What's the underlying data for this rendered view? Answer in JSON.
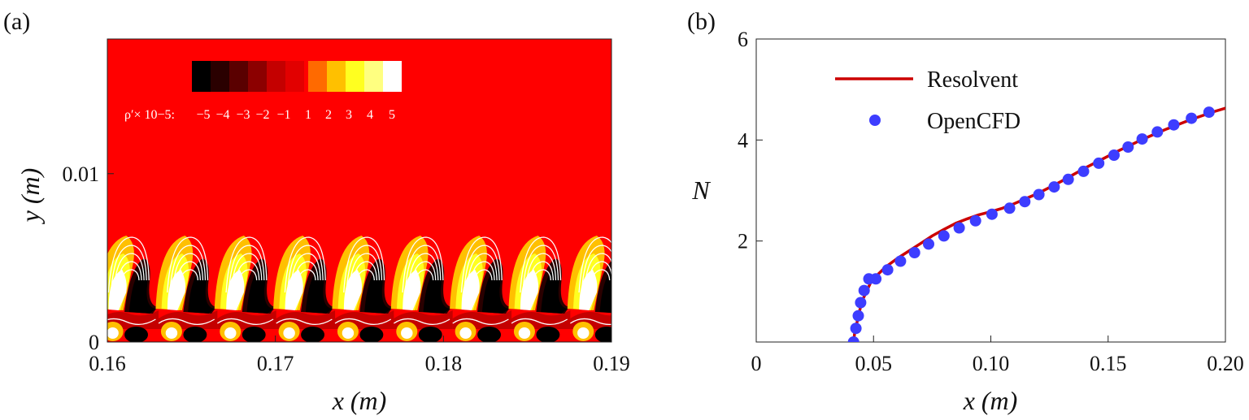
{
  "panel_a": {
    "label": "(a)",
    "xlabel": "x (m)",
    "ylabel": "y (m)",
    "xticks": [
      "0.16",
      "0.17",
      "0.18",
      "0.19"
    ],
    "yticks": [
      "0",
      "0.01"
    ],
    "colorbar": {
      "prefix": "ρ′× 10−5:",
      "ticks": [
        "−5",
        "−4",
        "−3",
        "−2",
        "−1",
        "1",
        "2",
        "3",
        "4",
        "5"
      ],
      "neg_colors": [
        "#000000",
        "#2a0000",
        "#5a0000",
        "#8c0000",
        "#c40000",
        "#e20000"
      ],
      "pos_colors": [
        "#ff6a00",
        "#ffc000",
        "#ffff20",
        "#ffff80",
        "#ffffff"
      ],
      "background": "#ff0000"
    }
  },
  "panel_b": {
    "label": "(b)",
    "xlabel": "x (m)",
    "ylabel": "N",
    "xticks": [
      "0",
      "0.05",
      "0.10",
      "0.15",
      "0.20"
    ],
    "yticks": [
      "2",
      "4",
      "6"
    ],
    "legend": {
      "resolvent": "Resolvent",
      "opencfd": "OpenCFD"
    }
  },
  "chart_data": [
    {
      "type": "heatmap",
      "title": "",
      "xlabel": "x (m)",
      "ylabel": "y (m)",
      "xlim": [
        0.16,
        0.19
      ],
      "ylim": [
        0,
        0.018
      ],
      "colorbar_label": "ρ′× 10−5",
      "colorbar_range": [
        -5,
        5
      ],
      "structure_centers_x": [
        0.1613,
        0.1648,
        0.1683,
        0.1718,
        0.1753,
        0.1788,
        0.1823,
        0.1858,
        0.1893
      ]
    },
    {
      "type": "line",
      "title": "",
      "xlabel": "x (m)",
      "ylabel": "N",
      "xlim": [
        0,
        0.2
      ],
      "ylim": [
        0,
        6
      ],
      "legend_position": "top-left",
      "series": [
        {
          "name": "Resolvent",
          "style": "line",
          "color": "#cc0000",
          "x": [
            0.0415,
            0.042,
            0.043,
            0.044,
            0.045,
            0.047,
            0.049,
            0.051,
            0.055,
            0.06,
            0.065,
            0.07,
            0.075,
            0.08,
            0.085,
            0.09,
            0.095,
            0.1,
            0.105,
            0.11,
            0.115,
            0.12,
            0.125,
            0.13,
            0.135,
            0.14,
            0.145,
            0.15,
            0.155,
            0.16,
            0.165,
            0.17,
            0.175,
            0.18,
            0.185,
            0.19,
            0.195,
            0.2
          ],
          "y": [
            0.0,
            0.2,
            0.4,
            0.6,
            0.8,
            1.0,
            1.2,
            1.3,
            1.48,
            1.65,
            1.8,
            1.95,
            2.1,
            2.23,
            2.35,
            2.44,
            2.52,
            2.58,
            2.65,
            2.74,
            2.84,
            2.94,
            3.06,
            3.18,
            3.31,
            3.44,
            3.56,
            3.68,
            3.8,
            3.91,
            4.02,
            4.12,
            4.22,
            4.31,
            4.4,
            4.48,
            4.56,
            4.63
          ]
        },
        {
          "name": "OpenCFD",
          "style": "markers",
          "color": "#3d3dff",
          "x": [
            0.0415,
            0.0425,
            0.0435,
            0.0445,
            0.046,
            0.048,
            0.051,
            0.056,
            0.0615,
            0.0675,
            0.0735,
            0.08,
            0.0865,
            0.0935,
            0.1005,
            0.108,
            0.1145,
            0.1205,
            0.127,
            0.133,
            0.1395,
            0.146,
            0.1525,
            0.1585,
            0.1645,
            0.171,
            0.178,
            0.1855,
            0.193
          ],
          "y": [
            0.0,
            0.27,
            0.52,
            0.78,
            1.02,
            1.25,
            1.25,
            1.43,
            1.6,
            1.77,
            1.94,
            2.1,
            2.26,
            2.4,
            2.53,
            2.65,
            2.78,
            2.92,
            3.07,
            3.22,
            3.38,
            3.54,
            3.7,
            3.86,
            4.02,
            4.16,
            4.3,
            4.43,
            4.55
          ]
        }
      ]
    }
  ]
}
